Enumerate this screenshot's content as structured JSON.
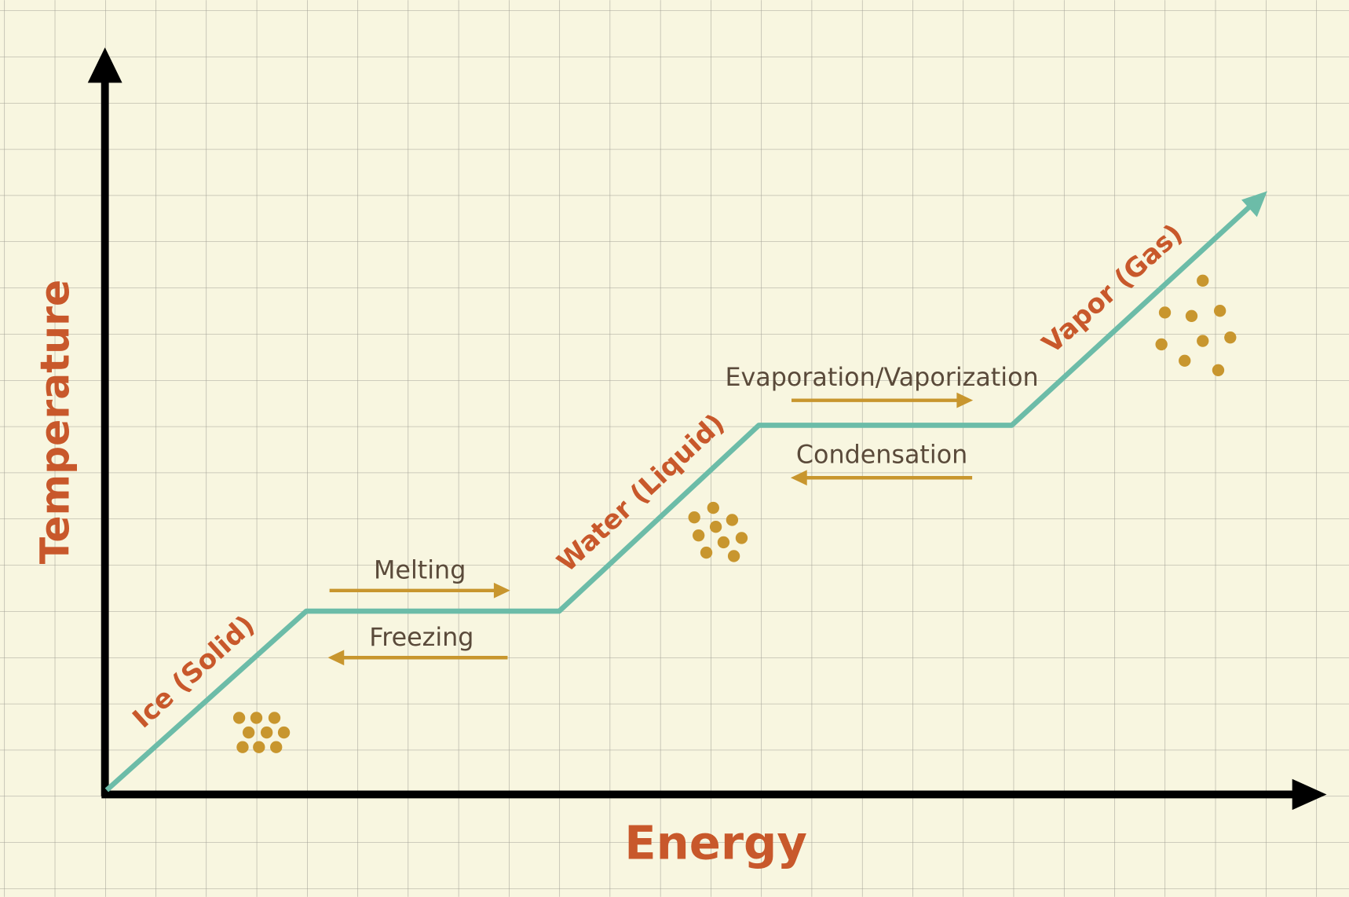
{
  "axes": {
    "x_label": "Energy",
    "y_label": "Temperature"
  },
  "phases": [
    "Ice (Solid)",
    "Water (Liquid)",
    "Vapor (Gas)"
  ],
  "processes": [
    "Melting",
    "Freezing",
    "Evaporation/Vaporization",
    "Condensation"
  ]
}
